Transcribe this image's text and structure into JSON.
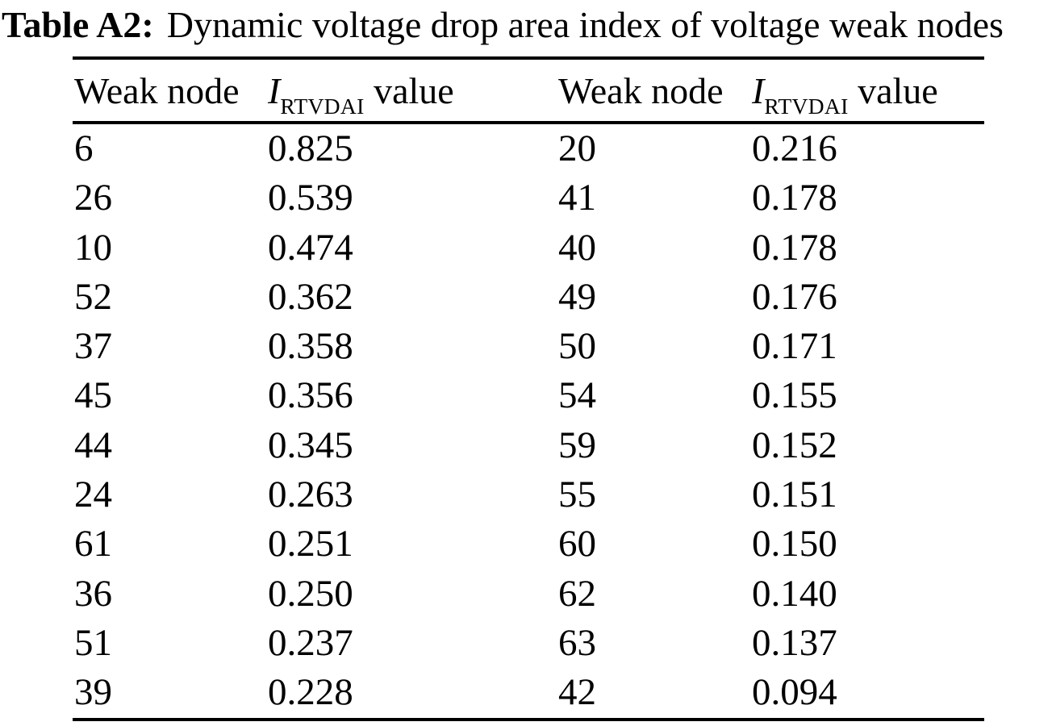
{
  "caption": {
    "label": "Table A2:",
    "text": "Dynamic voltage drop area index of voltage weak nodes"
  },
  "table": {
    "headers": [
      {
        "text": "Weak node"
      },
      {
        "symbol": "I",
        "subscript": "RTVDAI",
        "suffix": " value"
      },
      {
        "text": "Weak node"
      },
      {
        "symbol": "I",
        "subscript": "RTVDAI",
        "suffix": " value"
      }
    ],
    "rows": [
      [
        "6",
        "0.825",
        "20",
        "0.216"
      ],
      [
        "26",
        "0.539",
        "41",
        "0.178"
      ],
      [
        "10",
        "0.474",
        "40",
        "0.178"
      ],
      [
        "52",
        "0.362",
        "49",
        "0.176"
      ],
      [
        "37",
        "0.358",
        "50",
        "0.171"
      ],
      [
        "45",
        "0.356",
        "54",
        "0.155"
      ],
      [
        "44",
        "0.345",
        "59",
        "0.152"
      ],
      [
        "24",
        "0.263",
        "55",
        "0.151"
      ],
      [
        "61",
        "0.251",
        "60",
        "0.150"
      ],
      [
        "36",
        "0.250",
        "62",
        "0.140"
      ],
      [
        "51",
        "0.237",
        "63",
        "0.137"
      ],
      [
        "39",
        "0.228",
        "42",
        "0.094"
      ]
    ],
    "text_color": "#000000",
    "background": "#ffffff"
  }
}
